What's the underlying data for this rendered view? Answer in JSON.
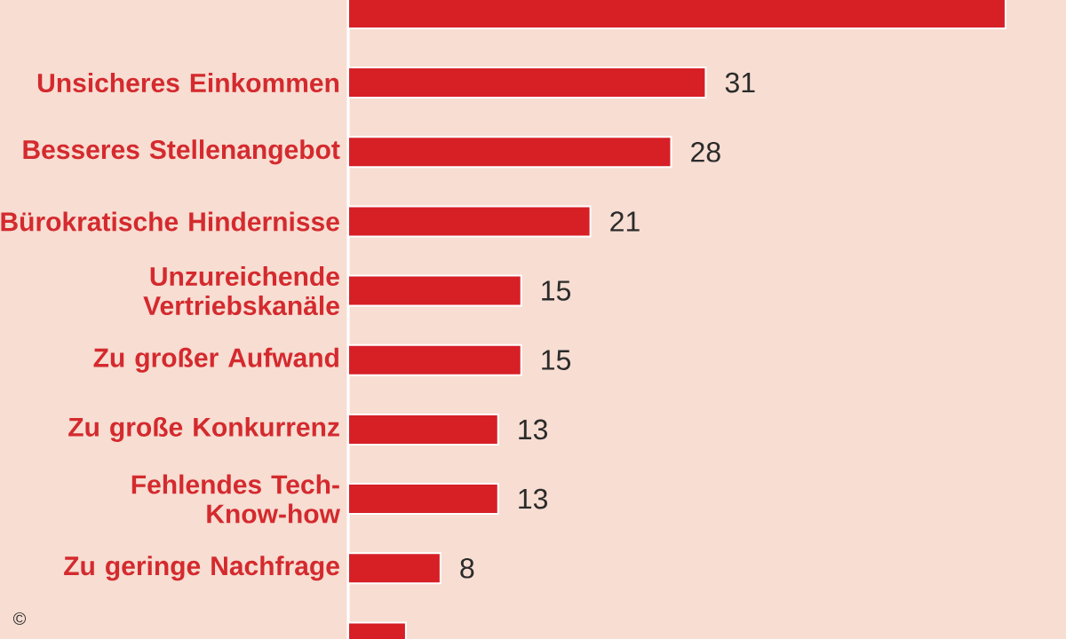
{
  "chart_data": {
    "type": "bar",
    "orientation": "horizontal",
    "categories": [
      null,
      "Unsicheres Einkommen",
      "Besseres Stellenangebot",
      "Bürokratische Hindernisse",
      "Unzureichende Vertriebskanäle",
      "Zu großer Aufwand",
      "Zu große Konkurrenz",
      "Fehlendes Tech-Know-how",
      "Zu geringe Nachfrage",
      null
    ],
    "values": [
      57,
      31,
      28,
      21,
      15,
      15,
      13,
      13,
      8,
      5
    ],
    "value_labels": [
      null,
      "31",
      "28",
      "21",
      "15",
      "15",
      "13",
      "13",
      "8",
      null
    ],
    "color": "#d71f26",
    "annotations": [
      "©"
    ]
  }
}
